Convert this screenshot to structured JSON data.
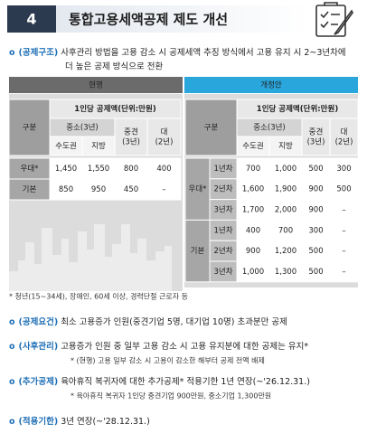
{
  "header": {
    "number": "4",
    "title": "통합고용세액공제 제도 개선"
  },
  "items": [
    {
      "label": "(공제구조)",
      "text": "사후관리 방법을 고용 감소 시 공제세액 추징 방식에서 고용 유지 시 2~3년차에",
      "text2": "더 높은 공제 방식으로 전환"
    },
    {
      "label": "(공제요건)",
      "text": "최소 고용증가 인원(중견기업 5명, 대기업 10명) 초과분만 공제"
    },
    {
      "label": "(사후관리)",
      "text": "고용증가 인원 중 일부 고용 감소 시 고용 유지분에 대한 공제는 유지*",
      "note": "* (현행) 고용 일부 감소 시 고용이 감소한 해부터 공제 전액 배제"
    },
    {
      "label": "(추가공제)",
      "text": "육아휴직 복귀자에 대한 추가공제* 적용기한 1년 연장(~'26.12.31.)",
      "note": "* 육아휴직 복귀자 1인당 중견기업 900만원, 중소기업 1,300만원"
    },
    {
      "label": "(적용기한)",
      "text": "3년 연장(~'28.12.31.)"
    }
  ],
  "tables": [
    {
      "tab": "현행",
      "unit": "1인당 공제액(단위:만원)",
      "gubun": "구분",
      "sme": "중소(3년)",
      "metro": "수도권",
      "local": "지방",
      "mid": [
        "중견",
        "(3년)"
      ],
      "large": [
        "대",
        "(2년)"
      ],
      "rows": [
        [
          "우대*",
          "1,450",
          "1,550",
          "800",
          "400"
        ],
        [
          "기본",
          "850",
          "950",
          "450",
          "–"
        ]
      ]
    },
    {
      "tab": "개정안",
      "unit": "1인당 공제액(단위:만원)",
      "gubun": "구분",
      "sme": "중소(3년)",
      "metro": "수도권",
      "local": "지방",
      "mid": [
        "중견",
        "(3년)"
      ],
      "large": [
        "대",
        "(2년)"
      ],
      "groups": [
        {
          "name": "우대*",
          "rows": [
            [
              "1년차",
              "700",
              "1,000",
              "500",
              "300"
            ],
            [
              "2년차",
              "1,600",
              "1,900",
              "900",
              "500"
            ],
            [
              "3년차",
              "1,700",
              "2,000",
              "900",
              "–"
            ]
          ]
        },
        {
          "name": "기본",
          "rows": [
            [
              "1년차",
              "400",
              "700",
              "300",
              "–"
            ],
            [
              "2년차",
              "900",
              "1,200",
              "500",
              "–"
            ],
            [
              "3년차",
              "1,000",
              "1,300",
              "500",
              "–"
            ]
          ]
        }
      ]
    }
  ],
  "tables_note": "* 청년(15~34세), 장애인, 60세 이상, 경력단절 근로자 등"
}
